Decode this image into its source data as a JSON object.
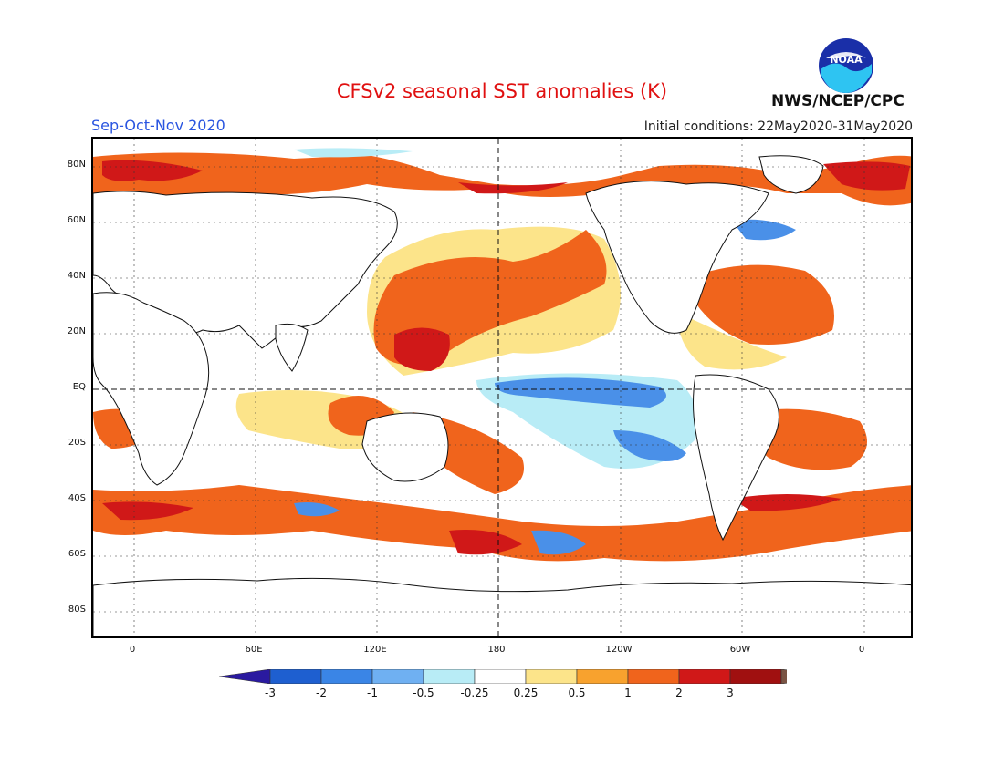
{
  "header": {
    "title": "CFSv2 seasonal SST anomalies (K)",
    "season": "Sep-Oct-Nov 2020",
    "initial_conditions": "Initial conditions: 22May2020-31May2020",
    "agency": "NWS/NCEP/CPC",
    "logo_text": "NOAA"
  },
  "axes": {
    "lat_labels": [
      "80N",
      "60N",
      "40N",
      "20N",
      "EQ",
      "20S",
      "40S",
      "60S",
      "80S"
    ],
    "lon_labels": [
      "0",
      "60E",
      "120E",
      "180",
      "120W",
      "60W",
      "0"
    ]
  },
  "colorbar": {
    "labels": [
      "-3",
      "-2",
      "-1",
      "-0.5",
      "-0.25",
      "0.25",
      "0.5",
      "1",
      "2",
      "3"
    ],
    "colors": [
      "#2a1aa0",
      "#1e5fd0",
      "#3a85e6",
      "#6fb0f2",
      "#b8ecf6",
      "#ffffff",
      "#fce48a",
      "#f8a22e",
      "#f0641c",
      "#d01818",
      "#a01010",
      "#7a5444"
    ]
  },
  "colors": {
    "title": "#e01010",
    "season": "#2a55e0",
    "warm": "#f08a2a",
    "strong_warm": "#d82a1a",
    "cold": "#4a90e8",
    "light_cold": "#b8ecf6",
    "light_warm": "#fce48a"
  }
}
